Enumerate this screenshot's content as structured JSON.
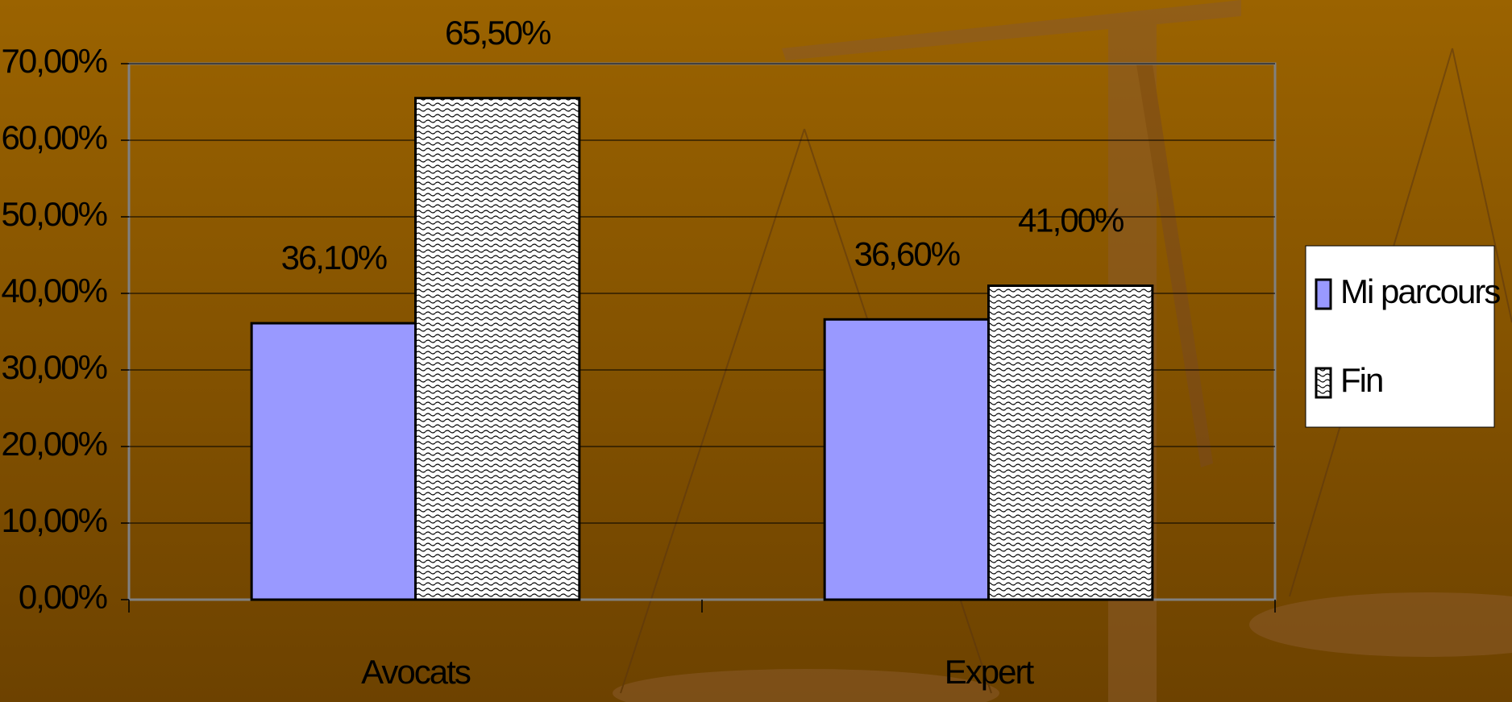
{
  "chart_data": {
    "type": "bar",
    "categories": [
      "Avocats",
      "Expert"
    ],
    "series": [
      {
        "name": "Mi parcours",
        "color": "#9999ff",
        "values": [
          36.1,
          36.6
        ],
        "value_labels": [
          "36,10%",
          "36,60%"
        ]
      },
      {
        "name": "Fin",
        "color": "pattern-wave",
        "values": [
          65.5,
          41.0
        ],
        "value_labels": [
          "65,50%",
          "41,00%"
        ]
      }
    ],
    "ylim": [
      0,
      70
    ],
    "yticks": [
      {
        "value": 0,
        "label": "0,00%"
      },
      {
        "value": 10,
        "label": "10,00%"
      },
      {
        "value": 20,
        "label": "20,00%"
      },
      {
        "value": 30,
        "label": "30,00%"
      },
      {
        "value": 40,
        "label": "40,00%"
      },
      {
        "value": 50,
        "label": "50,00%"
      },
      {
        "value": 60,
        "label": "60,00%"
      },
      {
        "value": 70,
        "label": "70,00%"
      }
    ],
    "grid": true,
    "legend": "right"
  }
}
